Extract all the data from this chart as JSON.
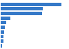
{
  "values": [
    34.9,
    24.1,
    23.8,
    5.4,
    3.2,
    2.2,
    1.8,
    1.6,
    1.4,
    0.9
  ],
  "bar_color": "#3579c8",
  "background_color": "#ffffff",
  "xlim": [
    0,
    38
  ],
  "bar_height": 0.72,
  "num_bars": 10
}
